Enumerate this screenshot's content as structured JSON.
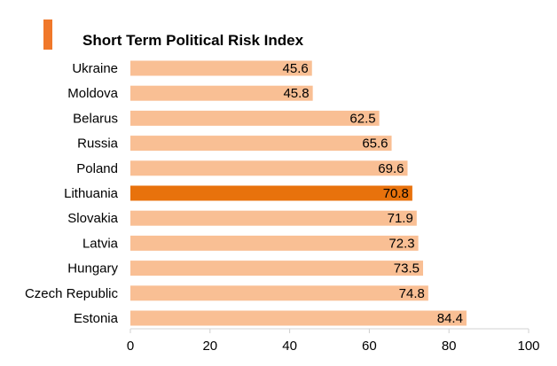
{
  "chart_data": {
    "type": "bar",
    "orientation": "horizontal",
    "title": "Short Term Political Risk Index",
    "categories": [
      "Ukraine",
      "Moldova",
      "Belarus",
      "Russia",
      "Poland",
      "Lithuania",
      "Slovakia",
      "Latvia",
      "Hungary",
      "Czech Republic",
      "Estonia"
    ],
    "values": [
      45.6,
      45.8,
      62.5,
      65.6,
      69.6,
      70.8,
      71.9,
      72.3,
      73.5,
      74.8,
      84.4
    ],
    "value_labels": [
      "45.6",
      "45.8",
      "62.5",
      "65.6",
      "69.6",
      "70.8",
      "71.9",
      "72.3",
      "73.5",
      "74.8",
      "84.4"
    ],
    "highlight_category": "Lithuania",
    "xlim": [
      0,
      100
    ],
    "xticks": [
      "0",
      "20",
      "40",
      "60",
      "80",
      "100"
    ],
    "xlabel": "",
    "ylabel": "",
    "grid": false,
    "legend": "none",
    "colors": {
      "bar": "#f9bf94",
      "highlight": "#e8720c",
      "accent": "#f0782a",
      "axis": "#d0d0d0"
    }
  }
}
